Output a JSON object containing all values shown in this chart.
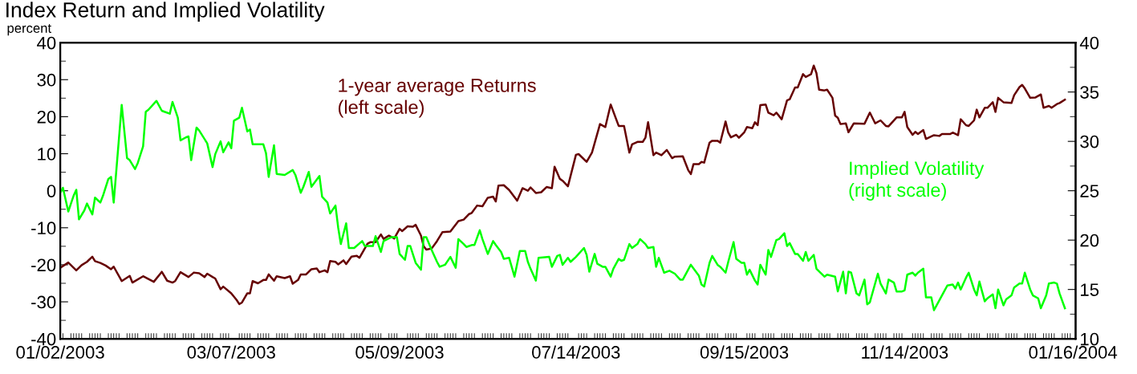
{
  "chart_data": {
    "type": "line",
    "title": "Index Return and Implied Volatility",
    "ylabel": "percent",
    "xlim": [
      "2003-01-02",
      "2004-01-17"
    ],
    "xticks": [
      {
        "value": "2003-01-02",
        "label": "01/02/2003"
      },
      {
        "value": "2003-03-07",
        "label": "03/07/2003"
      },
      {
        "value": "2003-05-09",
        "label": "05/09/2003"
      },
      {
        "value": "2003-07-14",
        "label": "07/14/2003"
      },
      {
        "value": "2003-09-15",
        "label": "09/15/2003"
      },
      {
        "value": "2003-11-14",
        "label": "11/14/2003"
      },
      {
        "value": "2004-01-16",
        "label": "01/16/2004"
      }
    ],
    "ylim": [
      -40,
      40
    ],
    "yticks": [
      -40,
      -30,
      -20,
      -10,
      0,
      10,
      20,
      30,
      40
    ],
    "y2lim": [
      10,
      40
    ],
    "y2ticks": [
      10,
      15,
      20,
      25,
      30,
      35,
      40
    ],
    "grid": false,
    "legend": false,
    "marker": "none",
    "line_style": "solid",
    "series": [
      {
        "name": "1-year average Returns\n(left scale)",
        "color": "#660000",
        "axis": "y",
        "x": [
          "2003-01-02",
          "2003-01-05",
          "2003-01-08",
          "2003-01-10",
          "2003-01-12",
          "2003-01-14",
          "2003-01-15",
          "2003-01-17",
          "2003-01-19",
          "2003-01-21",
          "2003-01-22",
          "2003-01-25",
          "2003-01-28",
          "2003-01-29",
          "2003-02-02",
          "2003-02-06",
          "2003-02-09",
          "2003-02-11",
          "2003-02-13",
          "2003-02-14",
          "2003-02-16",
          "2003-02-19",
          "2003-02-21",
          "2003-02-23",
          "2003-02-25",
          "2003-02-26",
          "2003-02-28",
          "2003-03-01",
          "2003-03-03",
          "2003-03-04",
          "2003-03-07",
          "2003-03-09",
          "2003-03-10",
          "2003-03-11",
          "2003-03-13",
          "2003-03-14",
          "2003-03-15",
          "2003-03-17",
          "2003-03-19",
          "2003-03-20",
          "2003-03-21",
          "2003-03-23",
          "2003-03-24",
          "2003-03-27",
          "2003-03-29",
          "2003-03-30",
          "2003-04-01",
          "2003-04-02",
          "2003-04-04",
          "2003-04-06",
          "2003-04-08",
          "2003-04-09",
          "2003-04-11",
          "2003-04-12",
          "2003-04-13",
          "2003-04-15",
          "2003-04-16",
          "2003-04-18",
          "2003-04-19",
          "2003-04-21",
          "2003-04-23",
          "2003-04-24",
          "2003-04-27",
          "2003-04-28",
          "2003-04-30",
          "2003-05-02",
          "2003-05-03",
          "2003-05-05",
          "2003-05-07",
          "2003-05-09",
          "2003-05-10",
          "2003-05-12",
          "2003-05-14",
          "2003-05-15",
          "2003-05-17",
          "2003-05-18",
          "2003-05-19",
          "2003-05-21",
          "2003-05-23",
          "2003-05-25",
          "2003-05-28",
          "2003-05-31",
          "2003-06-02",
          "2003-06-04",
          "2003-06-05",
          "2003-06-07",
          "2003-06-09",
          "2003-06-11",
          "2003-06-13",
          "2003-06-14",
          "2003-06-15",
          "2003-06-17",
          "2003-06-19",
          "2003-06-22",
          "2003-06-24",
          "2003-06-26",
          "2003-06-27",
          "2003-06-29",
          "2003-07-01",
          "2003-07-03",
          "2003-07-05",
          "2003-07-06",
          "2003-07-08",
          "2003-07-09",
          "2003-07-11",
          "2003-07-14",
          "2003-07-15",
          "2003-07-18",
          "2003-07-20",
          "2003-07-23",
          "2003-07-25",
          "2003-07-27",
          "2003-07-30",
          "2003-08-01",
          "2003-08-03",
          "2003-08-04",
          "2003-08-06",
          "2003-08-08",
          "2003-08-09",
          "2003-08-10",
          "2003-08-12",
          "2003-08-13",
          "2003-08-15",
          "2003-08-17",
          "2003-08-19",
          "2003-08-20",
          "2003-08-23",
          "2003-08-25",
          "2003-08-26",
          "2003-08-27",
          "2003-08-29",
          "2003-08-30",
          "2003-08-31",
          "2003-09-02",
          "2003-09-03",
          "2003-09-05",
          "2003-09-06",
          "2003-09-08",
          "2003-09-09",
          "2003-09-10",
          "2003-09-12",
          "2003-09-13",
          "2003-09-15",
          "2003-09-16",
          "2003-09-18",
          "2003-09-19",
          "2003-09-20",
          "2003-09-21",
          "2003-09-23",
          "2003-09-24",
          "2003-09-26",
          "2003-09-27",
          "2003-09-29",
          "2003-10-01",
          "2003-10-02",
          "2003-10-04",
          "2003-10-05",
          "2003-10-07",
          "2003-10-08",
          "2003-10-10",
          "2003-10-11",
          "2003-10-12",
          "2003-10-13",
          "2003-10-15",
          "2003-10-16",
          "2003-10-18",
          "2003-10-19",
          "2003-10-20",
          "2003-10-21",
          "2003-10-23",
          "2003-10-24",
          "2003-10-26",
          "2003-10-30",
          "2003-11-01",
          "2003-11-03",
          "2003-11-05",
          "2003-11-07",
          "2003-11-08",
          "2003-11-11",
          "2003-11-13",
          "2003-11-14",
          "2003-11-15",
          "2003-11-17",
          "2003-11-18",
          "2003-11-19",
          "2003-11-21",
          "2003-11-22",
          "2003-11-25",
          "2003-11-27",
          "2003-11-28",
          "2003-12-01",
          "2003-12-02",
          "2003-12-04",
          "2003-12-05",
          "2003-12-07",
          "2003-12-08",
          "2003-12-10",
          "2003-12-11",
          "2003-12-12",
          "2003-12-14",
          "2003-12-15",
          "2003-12-17",
          "2003-12-18",
          "2003-12-19",
          "2003-12-21",
          "2003-12-24",
          "2003-12-25",
          "2003-12-27",
          "2003-12-28",
          "2003-12-29",
          "2003-12-31",
          "2004-01-02",
          "2004-01-04",
          "2004-01-05",
          "2004-01-07",
          "2004-01-08",
          "2004-01-10",
          "2004-01-11",
          "2004-01-13"
        ],
        "values": [
          -20.8,
          -19.4,
          -21.5,
          -20.1,
          -19.2,
          -17.8,
          -19.0,
          -19.5,
          -20.2,
          -21.2,
          -20.5,
          -24.4,
          -23.0,
          -24.8,
          -23.1,
          -24.6,
          -21.9,
          -24.3,
          -24.8,
          -24.4,
          -22.0,
          -23.3,
          -22.1,
          -22.3,
          -23.3,
          -22.4,
          -23.3,
          -23.7,
          -26.6,
          -25.9,
          -27.7,
          -29.5,
          -30.6,
          -30.2,
          -27.7,
          -27.7,
          -24.4,
          -25.0,
          -24.1,
          -24.1,
          -22.6,
          -24.3,
          -23.1,
          -23.6,
          -23.1,
          -25.1,
          -24.1,
          -22.6,
          -22.6,
          -21.2,
          -21.0,
          -22.0,
          -21.5,
          -22.0,
          -19.0,
          -19.2,
          -19.9,
          -18.8,
          -19.8,
          -17.8,
          -17.6,
          -18.1,
          -14.3,
          -13.9,
          -13.9,
          -11.8,
          -13.0,
          -12.1,
          -12.9,
          -10.3,
          -10.9,
          -9.6,
          -9.7,
          -9.2,
          -12.1,
          -15.0,
          -15.9,
          -15.6,
          -13.6,
          -11.2,
          -11.0,
          -8.2,
          -7.8,
          -6.3,
          -6.0,
          -4.0,
          -4.2,
          -1.9,
          -1.6,
          -2.9,
          1.4,
          1.5,
          0.2,
          -2.7,
          0.7,
          0.0,
          0.9,
          -0.6,
          -0.4,
          1.0,
          0.7,
          6.5,
          3.2,
          2.7,
          1.2,
          9.7,
          9.9,
          7.8,
          10.3,
          18.0,
          17.2,
          23.3,
          17.5,
          17.5,
          10.3,
          12.5,
          13.2,
          13.2,
          14.3,
          18.5,
          9.6,
          10.3,
          9.6,
          11.0,
          8.8,
          9.2,
          9.3,
          5.6,
          4.5,
          7.2,
          7.2,
          7.8,
          7.6,
          13.0,
          13.5,
          13.5,
          13.0,
          18.7,
          15.7,
          14.4,
          15.1,
          14.3,
          15.8,
          17.2,
          16.9,
          18.5,
          17.7,
          23.1,
          23.3,
          21.1,
          20.4,
          21.1,
          19.3,
          24.4,
          24.7,
          27.9,
          27.9,
          31.5,
          30.7,
          31.5,
          33.8,
          31.8,
          27.3,
          27.1,
          27.3,
          25.1,
          20.3,
          19.7,
          18.0,
          18.2,
          15.8,
          18.2,
          18.1,
          21.1,
          18.2,
          19.0,
          17.5,
          17.4,
          19.8,
          19.8,
          21.3,
          17.2,
          15.1,
          15.9,
          15.3,
          16.4,
          14.0,
          15.0,
          14.8,
          15.3,
          15.3,
          15.7,
          15.0,
          19.3,
          17.7,
          17.5,
          19.0,
          21.9,
          19.8,
          22.4,
          22.4,
          23.9,
          21.3,
          25.1,
          23.9,
          23.7,
          25.8,
          28.0,
          28.6,
          27.6,
          25.1,
          25.2,
          26.0,
          22.4,
          22.9,
          22.4,
          23.4,
          23.7,
          24.6
        ]
      },
      {
        "name": "Implied Volatility\n(right scale)",
        "color": "#00ff00",
        "axis": "y2",
        "x": [
          "2003-01-02",
          "2003-01-03",
          "2003-01-05",
          "2003-01-07",
          "2003-01-08",
          "2003-01-09",
          "2003-01-11",
          "2003-01-12",
          "2003-01-14",
          "2003-01-15",
          "2003-01-17",
          "2003-01-18",
          "2003-01-20",
          "2003-01-21",
          "2003-01-22",
          "2003-01-25",
          "2003-01-27",
          "2003-01-28",
          "2003-01-30",
          "2003-01-31",
          "2003-02-02",
          "2003-02-03",
          "2003-02-04",
          "2003-02-06",
          "2003-02-07",
          "2003-02-09",
          "2003-02-10",
          "2003-02-12",
          "2003-02-13",
          "2003-02-15",
          "2003-02-16",
          "2003-02-18",
          "2003-02-19",
          "2003-02-20",
          "2003-02-22",
          "2003-02-23",
          "2003-02-26",
          "2003-02-28",
          "2003-03-01",
          "2003-03-03",
          "2003-03-04",
          "2003-03-06",
          "2003-03-07",
          "2003-03-08",
          "2003-03-10",
          "2003-03-11",
          "2003-03-13",
          "2003-03-14",
          "2003-03-15",
          "2003-03-17",
          "2003-03-19",
          "2003-03-20",
          "2003-03-21",
          "2003-03-23",
          "2003-03-24",
          "2003-03-27",
          "2003-03-30",
          "2003-03-31",
          "2003-04-02",
          "2003-04-03",
          "2003-04-05",
          "2003-04-06",
          "2003-04-09",
          "2003-04-10",
          "2003-04-12",
          "2003-04-13",
          "2003-04-15",
          "2003-04-16",
          "2003-04-17",
          "2003-04-19",
          "2003-04-20",
          "2003-04-22",
          "2003-04-25",
          "2003-04-26",
          "2003-04-29",
          "2003-04-30",
          "2003-05-02",
          "2003-05-03",
          "2003-05-06",
          "2003-05-08",
          "2003-05-09",
          "2003-05-11",
          "2003-05-12",
          "2003-05-13",
          "2003-05-15",
          "2003-05-17",
          "2003-05-18",
          "2003-05-19",
          "2003-05-21",
          "2003-05-23",
          "2003-05-24",
          "2003-05-26",
          "2003-05-28",
          "2003-05-30",
          "2003-05-31",
          "2003-06-02",
          "2003-06-03",
          "2003-06-05",
          "2003-06-06",
          "2003-06-08",
          "2003-06-09",
          "2003-06-11",
          "2003-06-13",
          "2003-06-14",
          "2003-06-16",
          "2003-06-17",
          "2003-06-19",
          "2003-06-21",
          "2003-06-23",
          "2003-06-25",
          "2003-06-26",
          "2003-06-27",
          "2003-06-29",
          "2003-06-30",
          "2003-07-04",
          "2003-07-05",
          "2003-07-07",
          "2003-07-08",
          "2003-07-09",
          "2003-07-11",
          "2003-07-12",
          "2003-07-14",
          "2003-07-17",
          "2003-07-18",
          "2003-07-19",
          "2003-07-21",
          "2003-07-22",
          "2003-07-24",
          "2003-07-25",
          "2003-07-27",
          "2003-07-28",
          "2003-07-30",
          "2003-07-31",
          "2003-08-01",
          "2003-08-03",
          "2003-08-04",
          "2003-08-06",
          "2003-08-07",
          "2003-08-09",
          "2003-08-10",
          "2003-08-12",
          "2003-08-13",
          "2003-08-14",
          "2003-08-16",
          "2003-08-18",
          "2003-08-20",
          "2003-08-22",
          "2003-08-23",
          "2003-08-26",
          "2003-08-29",
          "2003-08-30",
          "2003-08-31",
          "2003-09-02",
          "2003-09-03",
          "2003-09-05",
          "2003-09-06",
          "2003-09-08",
          "2003-09-09",
          "2003-09-11",
          "2003-09-12",
          "2003-09-14",
          "2003-09-15",
          "2003-09-16",
          "2003-09-17",
          "2003-09-19",
          "2003-09-20",
          "2003-09-21",
          "2003-09-23",
          "2003-09-24",
          "2003-09-25",
          "2003-09-27",
          "2003-09-28",
          "2003-09-30",
          "2003-10-01",
          "2003-10-02",
          "2003-10-04",
          "2003-10-05",
          "2003-10-07",
          "2003-10-08",
          "2003-10-09",
          "2003-10-11",
          "2003-10-12",
          "2003-10-15",
          "2003-10-16",
          "2003-10-19",
          "2003-10-20",
          "2003-10-22",
          "2003-10-23",
          "2003-10-24",
          "2003-10-25",
          "2003-10-27",
          "2003-10-28",
          "2003-10-30",
          "2003-10-31",
          "2003-11-01",
          "2003-11-04",
          "2003-11-05",
          "2003-11-07",
          "2003-11-08",
          "2003-11-10",
          "2003-11-11",
          "2003-11-13",
          "2003-11-14",
          "2003-11-15",
          "2003-11-17",
          "2003-11-18",
          "2003-11-19",
          "2003-11-21",
          "2003-11-22",
          "2003-11-24",
          "2003-11-25",
          "2003-11-26",
          "2003-11-29",
          "2003-11-30",
          "2003-12-02",
          "2003-12-03",
          "2003-12-04",
          "2003-12-05",
          "2003-12-07",
          "2003-12-08",
          "2003-12-10",
          "2003-12-11",
          "2003-12-12",
          "2003-12-14",
          "2003-12-15",
          "2003-12-17",
          "2003-12-18",
          "2003-12-19",
          "2003-12-21",
          "2003-12-22",
          "2003-12-24",
          "2003-12-25",
          "2003-12-27",
          "2003-12-28",
          "2003-12-29",
          "2003-12-31",
          "2004-01-01",
          "2004-01-03",
          "2004-01-04",
          "2004-01-06",
          "2004-01-07",
          "2004-01-09",
          "2004-01-10",
          "2004-01-11",
          "2004-01-13"
        ],
        "values": [
          24.8,
          25.3,
          22.9,
          24.5,
          25.1,
          22.1,
          23.0,
          23.7,
          22.6,
          24.3,
          23.8,
          24.5,
          26.2,
          26.4,
          23.8,
          33.7,
          28.3,
          28.1,
          27.2,
          27.8,
          29.5,
          33.0,
          33.2,
          33.8,
          34.1,
          33.1,
          33.0,
          32.8,
          34.0,
          32.4,
          30.1,
          30.4,
          30.5,
          28.1,
          31.4,
          31.1,
          29.8,
          27.4,
          28.7,
          30.0,
          28.9,
          29.9,
          29.3,
          32.1,
          32.4,
          33.4,
          31.0,
          31.2,
          29.7,
          29.7,
          29.7,
          28.8,
          26.4,
          29.6,
          26.7,
          26.6,
          27.1,
          26.6,
          24.8,
          25.4,
          26.9,
          25.4,
          26.5,
          24.4,
          23.8,
          22.7,
          23.5,
          21.3,
          19.6,
          21.7,
          19.2,
          19.2,
          19.9,
          19.4,
          19.4,
          20.4,
          18.8,
          19.9,
          20.3,
          20.3,
          18.6,
          18.0,
          19.4,
          19.4,
          17.7,
          17.0,
          20.3,
          20.3,
          19.0,
          17.8,
          17.3,
          17.5,
          18.3,
          17.2,
          20.1,
          19.6,
          19.3,
          19.5,
          19.5,
          21.0,
          20.1,
          18.6,
          19.9,
          19.5,
          18.8,
          18.1,
          18.2,
          16.3,
          18.9,
          18.9,
          17.8,
          17.1,
          15.9,
          18.2,
          18.3,
          17.3,
          18.4,
          18.5,
          17.5,
          18.2,
          17.8,
          18.3,
          19.2,
          18.5,
          16.8,
          18.6,
          17.6,
          17.3,
          17.3,
          16.3,
          17.1,
          18.1,
          17.9,
          18.0,
          19.6,
          19.2,
          19.6,
          20.1,
          19.6,
          19.2,
          19.3,
          17.3,
          18.2,
          16.7,
          16.9,
          16.6,
          16.0,
          16.0,
          17.5,
          16.4,
          15.5,
          15.3,
          17.7,
          18.4,
          17.5,
          17.3,
          16.7,
          17.8,
          19.8,
          18.1,
          17.7,
          17.7,
          16.5,
          17.0,
          15.9,
          15.5,
          17.5,
          16.5,
          19.0,
          18.3,
          20.0,
          20.1,
          20.7,
          19.4,
          19.7,
          18.6,
          18.6,
          17.9,
          18.8,
          17.9,
          18.5,
          17.1,
          16.3,
          16.5,
          16.3,
          14.8,
          16.8,
          14.6,
          16.8,
          16.7,
          14.6,
          14.4,
          16.0,
          13.5,
          13.7,
          16.6,
          15.6,
          14.6,
          16.0,
          15.7,
          14.8,
          14.8,
          14.9,
          16.5,
          16.7,
          16.4,
          16.7,
          17.1,
          14.2,
          14.2,
          12.9,
          13.4,
          14.9,
          15.4,
          15.5,
          15.1,
          15.7,
          15.0,
          16.2,
          16.7,
          15.0,
          14.4,
          15.8,
          13.8,
          14.1,
          14.5,
          13.1,
          15.0,
          13.4,
          14.0,
          14.4,
          15.2,
          15.6,
          15.6,
          16.7,
          15.0,
          14.4,
          14.1,
          13.1,
          14.4,
          15.6,
          15.7,
          15.6,
          14.6,
          13.1
        ]
      }
    ]
  }
}
